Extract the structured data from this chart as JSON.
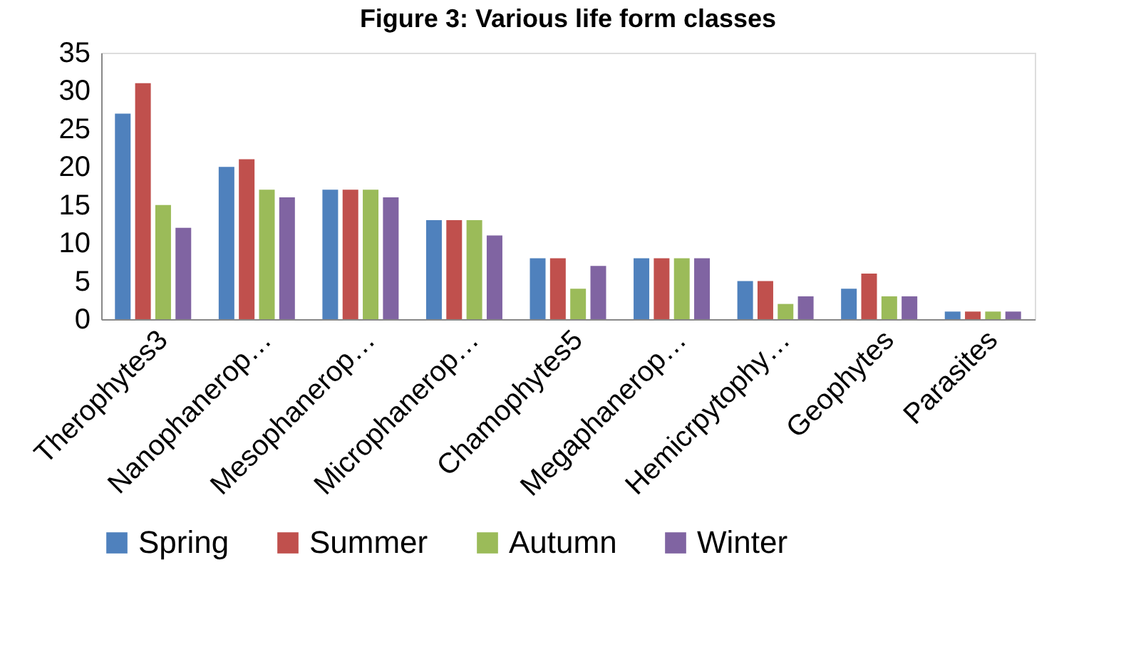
{
  "chart_data": {
    "type": "bar",
    "title": "Figure 3: Various life form classes",
    "categories": [
      "Therophytes3",
      "Nanophanerop…",
      "Mesophanerop…",
      "Microphanerop…",
      "Chamophytes5",
      "Megaphanerop…",
      "Hemicrpytophy…",
      "Geophytes",
      "Parasites"
    ],
    "series": [
      {
        "name": "Spring",
        "color": "#4f81bd",
        "values": [
          27,
          20,
          17,
          13,
          8,
          8,
          5,
          4,
          1
        ]
      },
      {
        "name": "Summer",
        "color": "#c0504d",
        "values": [
          31,
          21,
          17,
          13,
          8,
          8,
          5,
          6,
          1
        ]
      },
      {
        "name": "Autumn",
        "color": "#9bbb59",
        "values": [
          15,
          17,
          17,
          13,
          4,
          8,
          2,
          3,
          1
        ]
      },
      {
        "name": "Winter",
        "color": "#8064a2",
        "values": [
          12,
          16,
          16,
          11,
          7,
          8,
          3,
          3,
          1
        ]
      }
    ],
    "ylim": [
      0,
      35
    ],
    "yticks": [
      0,
      5,
      10,
      15,
      20,
      25,
      30,
      35
    ],
    "grid": false,
    "legend": "bottom"
  }
}
